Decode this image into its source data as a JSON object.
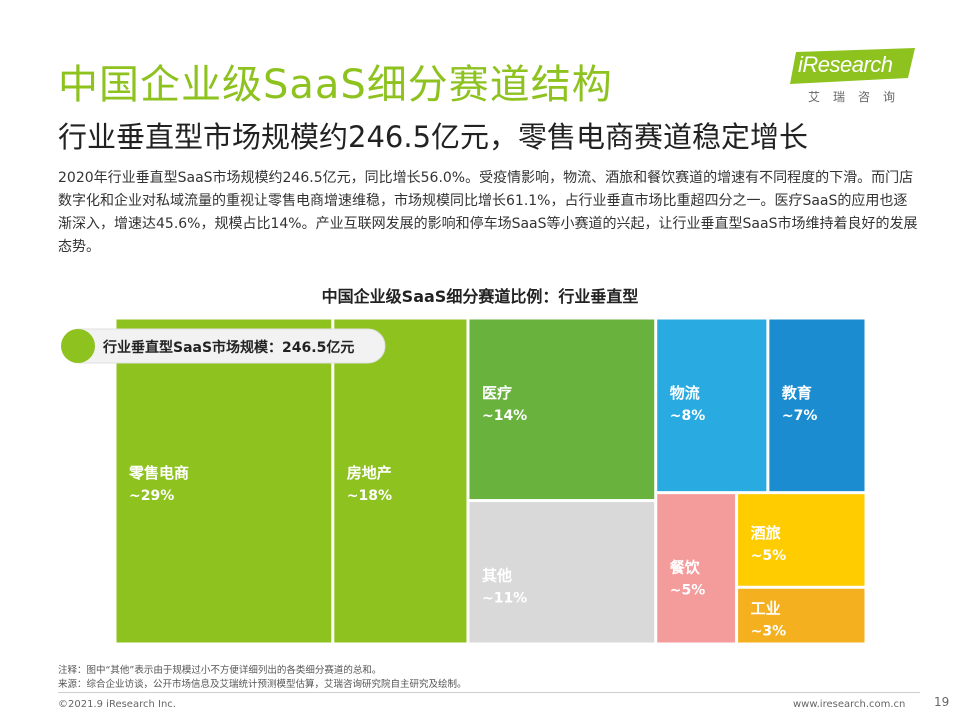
{
  "header": {
    "title": "中国企业级SaaS细分赛道结构",
    "subtitle": "行业垂直型市场规模约246.5亿元，零售电商赛道稳定增长"
  },
  "logo": {
    "text": "iResearch",
    "sub": "艾瑞咨询",
    "color": "#8dc21f"
  },
  "body": {
    "paragraph": "2020年行业垂直型SaaS市场规模约246.5亿元，同比增长56.0%。受疫情影响，物流、酒旅和餐饮赛道的增速有不同程度的下滑。而门店数字化和企业对私域流量的重视让零售电商增速维稳，市场规模同比增长61.1%，占行业垂直市场比重超四分之一。医疗SaaS的应用也逐渐深入，增速达45.6%，规模占比14%。产业互联网发展的影响和停车场SaaS等小赛道的兴起，让行业垂直型SaaS市场维持着良好的发展态势。"
  },
  "chart_data": {
    "type": "treemap",
    "title": "中国企业级SaaS细分赛道比例：行业垂直型",
    "callout": "行业垂直型SaaS市场规模：246.5亿元",
    "segments": [
      {
        "name": "零售电商",
        "label": "~29%",
        "value": 29,
        "color": "#8dc21f"
      },
      {
        "name": "房地产",
        "label": "~18%",
        "value": 18,
        "color": "#8dc21f"
      },
      {
        "name": "医疗",
        "label": "~14%",
        "value": 14,
        "color": "#6ab23e"
      },
      {
        "name": "其他",
        "label": "~11%",
        "value": 11,
        "color": "#d9d9d9"
      },
      {
        "name": "物流",
        "label": "~8%",
        "value": 8,
        "color": "#29abe2"
      },
      {
        "name": "教育",
        "label": "~7%",
        "value": 7,
        "color": "#1a8ccf"
      },
      {
        "name": "餐饮",
        "label": "~5%",
        "value": 5,
        "color": "#f49c9c"
      },
      {
        "name": "酒旅",
        "label": "~5%",
        "value": 5,
        "color": "#ffcc00"
      },
      {
        "name": "工业",
        "label": "~3%",
        "value": 3,
        "color": "#f5b01f"
      }
    ]
  },
  "notes": {
    "note": "注释：图中“其他”表示由于规模过小不方便详细列出的各类细分赛道的总和。",
    "source": "来源：综合企业访谈，公开市场信息及艾瑞统计预测模型估算，艾瑞咨询研究院自主研究及绘制。"
  },
  "footer": {
    "copyright": "©2021.9 iResearch Inc.",
    "url": "www.iresearch.com.cn",
    "page": "19"
  }
}
